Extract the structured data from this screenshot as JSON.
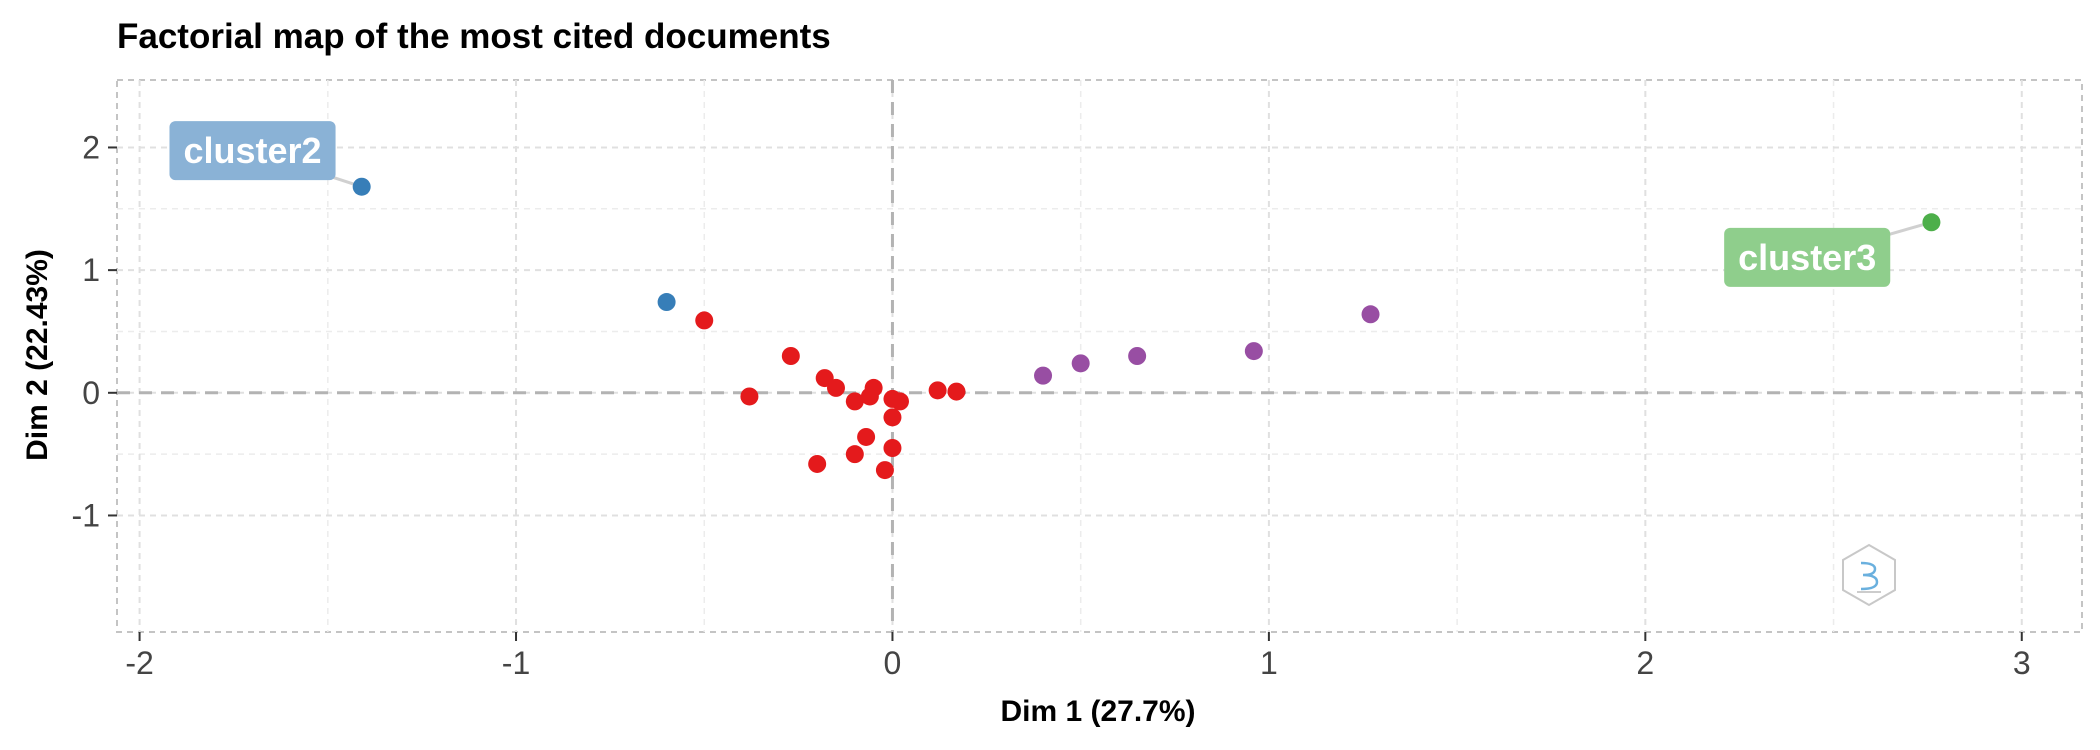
{
  "chart_data": {
    "type": "scatter",
    "title": "Factorial map of the most cited documents",
    "xlabel": "Dim 1 (27.7%)",
    "ylabel": "Dim 2 (22.43%)",
    "xlim": [
      -2.06,
      3.16
    ],
    "ylim": [
      -1.95,
      2.55
    ],
    "x_ticks": [
      -2,
      -1,
      0,
      1,
      2,
      3
    ],
    "x_tick_labels": [
      "-2",
      "-1",
      "0",
      "1",
      "2",
      "3"
    ],
    "y_ticks": [
      -1,
      0,
      1,
      2
    ],
    "y_tick_labels": [
      "-1",
      "0",
      "1",
      "2"
    ],
    "grid": true,
    "reference_lines": {
      "x": 0,
      "y": 0
    },
    "colors": {
      "cluster1": "#e41a1c",
      "cluster2": "#377eb8",
      "cluster3": "#4daf4a",
      "cluster4": "#984ea3",
      "cluster2_label_bg": "#8ab2d6",
      "cluster3_label_bg": "#8fce8c"
    },
    "series": [
      {
        "cluster": "cluster1",
        "points": [
          [
            -0.5,
            0.59
          ],
          [
            -0.27,
            0.3
          ],
          [
            -0.38,
            -0.03
          ],
          [
            -0.18,
            0.12
          ],
          [
            -0.15,
            0.04
          ],
          [
            -0.05,
            0.04
          ],
          [
            -0.1,
            -0.07
          ],
          [
            -0.06,
            -0.03
          ],
          [
            0.0,
            -0.05
          ],
          [
            0.02,
            -0.07
          ],
          [
            0.0,
            -0.2
          ],
          [
            -0.07,
            -0.36
          ],
          [
            -0.1,
            -0.5
          ],
          [
            0.0,
            -0.45
          ],
          [
            -0.02,
            -0.63
          ],
          [
            -0.2,
            -0.58
          ],
          [
            0.12,
            0.02
          ],
          [
            0.17,
            0.01
          ]
        ]
      },
      {
        "cluster": "cluster2",
        "name": "cluster2",
        "points": [
          [
            -1.41,
            1.68
          ],
          [
            -0.6,
            0.74
          ]
        ]
      },
      {
        "cluster": "cluster3",
        "name": "cluster3",
        "points": [
          [
            2.76,
            1.39
          ]
        ]
      },
      {
        "cluster": "cluster4",
        "points": [
          [
            0.4,
            0.14
          ],
          [
            0.5,
            0.24
          ],
          [
            0.65,
            0.3
          ],
          [
            0.96,
            0.34
          ],
          [
            1.27,
            0.64
          ]
        ]
      }
    ],
    "cluster_labels": [
      {
        "text": "cluster2",
        "cluster": "cluster2",
        "anchor": [
          -1.41,
          1.68
        ],
        "label_at": [
          -1.7,
          1.97
        ]
      },
      {
        "text": "cluster3",
        "cluster": "cluster3",
        "anchor": [
          2.76,
          1.39
        ],
        "label_at": [
          2.43,
          1.1
        ]
      }
    ]
  }
}
